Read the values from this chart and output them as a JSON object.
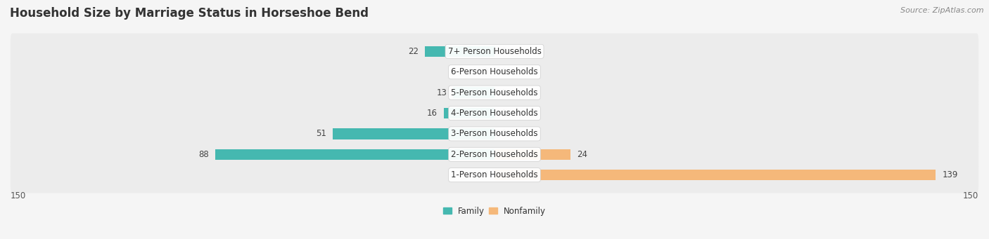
{
  "title": "Household Size by Marriage Status in Horseshoe Bend",
  "source": "Source: ZipAtlas.com",
  "categories": [
    "7+ Person Households",
    "6-Person Households",
    "5-Person Households",
    "4-Person Households",
    "3-Person Households",
    "2-Person Households",
    "1-Person Households"
  ],
  "family": [
    22,
    0,
    13,
    16,
    51,
    88,
    0
  ],
  "nonfamily": [
    0,
    0,
    0,
    0,
    0,
    24,
    139
  ],
  "family_color": "#45b8b0",
  "nonfamily_color": "#f5b87a",
  "xlim": 150,
  "bg_color": "#f5f5f5",
  "row_color": "#ececec",
  "title_fontsize": 12,
  "label_fontsize": 8.5,
  "value_fontsize": 8.5,
  "tick_fontsize": 8.5,
  "source_fontsize": 8
}
